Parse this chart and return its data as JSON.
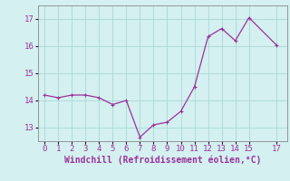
{
  "x": [
    0,
    1,
    2,
    3,
    4,
    5,
    6,
    7,
    8,
    9,
    10,
    11,
    12,
    13,
    14,
    15,
    17
  ],
  "y": [
    14.2,
    14.1,
    14.2,
    14.2,
    14.1,
    13.85,
    14.0,
    12.65,
    13.1,
    13.2,
    13.6,
    14.5,
    16.35,
    16.65,
    16.2,
    17.05,
    16.05
  ],
  "line_color": "#993399",
  "marker": "+",
  "marker_size": 3,
  "marker_linewidth": 0.8,
  "background_color": "#d4f0f0",
  "grid_color": "#aad8d8",
  "xlabel": "Windchill (Refroidissement éolien,°C)",
  "xlim": [
    -0.5,
    17.8
  ],
  "ylim": [
    12.5,
    17.5
  ],
  "yticks": [
    13,
    14,
    15,
    16,
    17
  ],
  "xticks": [
    0,
    1,
    2,
    3,
    4,
    5,
    6,
    7,
    8,
    9,
    10,
    11,
    12,
    13,
    14,
    15,
    17
  ],
  "xlabel_fontsize": 7,
  "tick_fontsize": 6.5,
  "line_width": 0.9,
  "spine_color": "#888888"
}
